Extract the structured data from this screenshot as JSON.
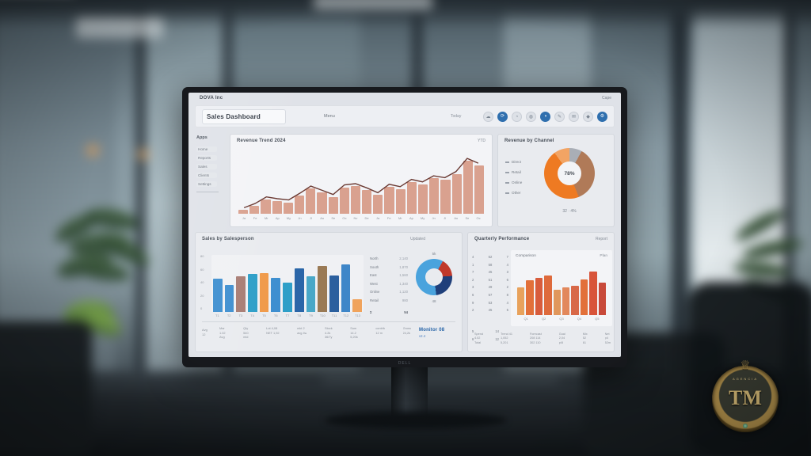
{
  "scene": {
    "watermark_initials": "TM",
    "watermark_ring_text": "AGENCIA",
    "monitor_brand": "DELL"
  },
  "dashboard": {
    "topbar": {
      "logo": "DOVA Inc",
      "window_label": "Cape"
    },
    "toolbar": {
      "title": "Sales Dashboard",
      "menu_label": "Menu",
      "status_label": "Today",
      "icons": [
        {
          "name": "cloud-icon",
          "glyph": "☁",
          "style": "ghost"
        },
        {
          "name": "sync-icon",
          "glyph": "⟳",
          "style": "solid"
        },
        {
          "name": "chart-icon",
          "glyph": "◔",
          "style": "ghost"
        },
        {
          "name": "globe-icon",
          "glyph": "◍",
          "style": "ghost"
        },
        {
          "name": "user-icon",
          "glyph": "◑",
          "style": "solid"
        },
        {
          "name": "compose-icon",
          "glyph": "✎",
          "style": "ghost"
        },
        {
          "name": "mail-icon",
          "glyph": "✉",
          "style": "ghost"
        },
        {
          "name": "bell-icon",
          "glyph": "◆",
          "style": "ghost"
        },
        {
          "name": "settings-icon",
          "glyph": "⚙",
          "style": "solid"
        }
      ]
    },
    "sidebar": {
      "heading": "Apps",
      "items": [
        "Home",
        "Reports",
        "Sales",
        "Clients",
        "Settings"
      ]
    }
  },
  "chart_data": [
    {
      "type": "bar",
      "subtype": "bar-line-combo",
      "title": "Revenue Trend 2024",
      "corner_label": "YTD",
      "categories": [
        "Ja",
        "Fe",
        "Mr",
        "Ap",
        "My",
        "Jn",
        "Jl",
        "Au",
        "Se",
        "Oc",
        "Nv",
        "De",
        "Ja",
        "Fe",
        "Mr",
        "Ap",
        "My",
        "Jn",
        "Jl",
        "Au",
        "Se",
        "Oc"
      ],
      "values": [
        6,
        13,
        24,
        21,
        19,
        30,
        42,
        35,
        28,
        44,
        46,
        39,
        31,
        45,
        41,
        53,
        49,
        59,
        56,
        66,
        88,
        80
      ],
      "line": [
        10,
        17,
        28,
        25,
        23,
        34,
        46,
        39,
        32,
        48,
        50,
        43,
        35,
        49,
        45,
        57,
        53,
        63,
        60,
        70,
        92,
        84
      ],
      "bar_color": "#d9a18f",
      "line_color": "#6b3a33",
      "ylim": [
        0,
        100
      ],
      "grid": false,
      "legend": []
    },
    {
      "type": "pie",
      "subtype": "donut",
      "title": "Revenue by Channel",
      "center_label": "78%",
      "caption": "32 · 4%",
      "legend": [
        "Direct",
        "Retail",
        "Online",
        "Other"
      ],
      "legend_position": "left",
      "segments": [
        {
          "label": "Other",
          "pct": 8,
          "color": "#a9aeb6"
        },
        {
          "label": "Retail",
          "pct": 36,
          "color": "#b07a58"
        },
        {
          "label": "Direct",
          "pct": 46,
          "color": "#ee7a22"
        },
        {
          "label": "Online",
          "pct": 10,
          "color": "#f2a464"
        }
      ]
    },
    {
      "type": "bar",
      "title": "Sales by Salesperson",
      "updated_label": "Updated",
      "y_ticks": [
        "80",
        "60",
        "40",
        "20",
        "0"
      ],
      "ylim": [
        0,
        100
      ],
      "categories": [
        "T1",
        "T2",
        "T3",
        "T4",
        "T5",
        "T6",
        "T7",
        "T8",
        "T9",
        "T10",
        "T11",
        "T12",
        "T13"
      ],
      "values": [
        58,
        47,
        62,
        66,
        68,
        60,
        52,
        76,
        62,
        80,
        64,
        84,
        22
      ],
      "colors": [
        "#3e8fd0",
        "#3e8fd0",
        "#a87d74",
        "#2e9fc8",
        "#f09a4a",
        "#3e8fd0",
        "#2e9fc8",
        "#2b66a8",
        "#49a8c8",
        "#9a7a55",
        "#2b5f9e",
        "#3e86c8",
        "#f0a35c"
      ],
      "kv_list": [
        {
          "label": "North",
          "value": "2,140"
        },
        {
          "label": "South",
          "value": "1,870"
        },
        {
          "label": "East",
          "value": "1,560"
        },
        {
          "label": "West",
          "value": "1,340"
        },
        {
          "label": "Online",
          "value": "1,120"
        },
        {
          "label": "Retail",
          "value": "980"
        }
      ],
      "kv_total": {
        "label": "Σ",
        "value": "54"
      },
      "mini_donut": {
        "top_label": "5k",
        "bottom_label": "48",
        "segments": [
          {
            "pct": 8,
            "color": "#4aa3dd"
          },
          {
            "pct": 16,
            "color": "#c0392b"
          },
          {
            "pct": 24,
            "color": "#1f3f7a"
          },
          {
            "pct": 52,
            "color": "#4aa3dd"
          }
        ]
      },
      "footer_label_lines": [
        "Avg",
        "12"
      ],
      "footer_cols": [
        [
          "Mar",
          "1.02",
          "Avg"
        ],
        [
          "Qty",
          "540",
          "mid"
        ],
        [
          "Lot 4,08",
          "NET 1,92"
        ],
        [
          "mkt 2",
          "avg 4w"
        ],
        [
          "Stock",
          "4.2k",
          "36/7y"
        ],
        [
          "Sum",
          "14.2",
          "5,20k"
        ],
        [
          "contrib",
          "12 m"
        ],
        [
          "Gross",
          "24,2k"
        ]
      ],
      "stamp": {
        "line1": "Monitor 08",
        "line2": "v2.4"
      }
    },
    {
      "type": "bar",
      "title": "Quarterly Performance",
      "corner_label": "Report",
      "subtitle": "Comparison",
      "subtitle_right": "Plan",
      "mini_table": [
        [
          "4",
          "62",
          "7"
        ],
        [
          "1",
          "58",
          "4"
        ],
        [
          "7",
          "45",
          "3"
        ],
        [
          "2",
          "51",
          "6"
        ],
        [
          "3",
          "49",
          "2"
        ],
        [
          "6",
          "57",
          "8"
        ],
        [
          "9",
          "53",
          "4"
        ],
        [
          "2",
          "45",
          "5"
        ]
      ],
      "mini_table_extra": [
        [
          "5",
          "14"
        ],
        [
          "6",
          "12"
        ]
      ],
      "categories": [
        "Q1",
        "Q2",
        "Q3",
        "Q4",
        "Q5"
      ],
      "values": [
        55,
        68,
        74,
        78,
        50,
        54,
        58,
        70,
        86,
        64
      ],
      "colors": [
        "#e8a25c",
        "#e2703a",
        "#d85c3c",
        "#de6a3c",
        "#e0975c",
        "#e2885c",
        "#d86848",
        "#e2703a",
        "#d8543a",
        "#c8493a"
      ],
      "ylim": [
        0,
        100
      ],
      "footer_cols": [
        [
          "Spend",
          "4.02",
          "Total"
        ],
        [
          "Trend 41",
          "1,052",
          "5,201"
        ],
        [
          "Forecast",
          "208 114",
          "302 110"
        ],
        [
          "Goal",
          "2,04",
          "p/8"
        ],
        [
          "Mix",
          "52",
          "61"
        ],
        [
          "Net",
          "p4",
          "52m"
        ]
      ]
    }
  ],
  "colors": {
    "accent_blue": "#2f6fae",
    "accent_orange": "#ee7a22",
    "salmon_bar": "#d9a18f",
    "trend_line": "#6b3a33",
    "screen_bg": "#dfe2e8"
  }
}
